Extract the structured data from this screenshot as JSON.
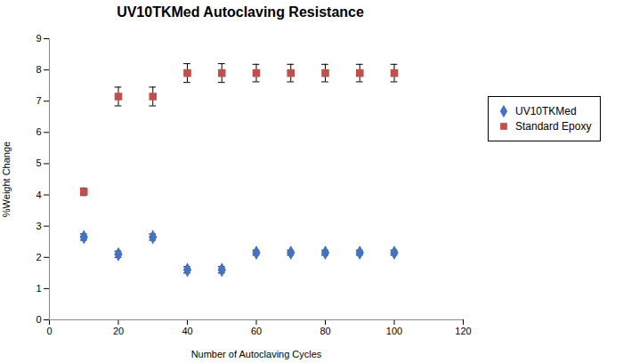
{
  "chart_data": {
    "type": "scatter",
    "title": "UV10TKMed Autoclaving Resistance",
    "xlabel": "Number of Autoclaving Cycles",
    "ylabel": "%Weight Change",
    "xlim": [
      0,
      120
    ],
    "ylim": [
      0,
      9
    ],
    "xticks": [
      0,
      20,
      40,
      60,
      80,
      100,
      120
    ],
    "yticks": [
      0,
      1,
      2,
      3,
      4,
      5,
      6,
      7,
      8,
      9
    ],
    "grid": false,
    "legend": "right",
    "series": [
      {
        "name": "UV10TKMed",
        "color": "#4472C4",
        "marker": "diamond",
        "x": [
          10,
          20,
          30,
          40,
          50,
          60,
          70,
          80,
          90,
          100
        ],
        "values": [
          2.65,
          2.1,
          2.65,
          1.6,
          1.6,
          2.15,
          2.15,
          2.15,
          2.15,
          2.15
        ],
        "yerr": [
          0.1,
          0.1,
          0.1,
          0.1,
          0.1,
          0.08,
          0.08,
          0.08,
          0.08,
          0.08
        ]
      },
      {
        "name": "Standard Epoxy",
        "color": "#C0504D",
        "marker": "square",
        "x": [
          10,
          20,
          30,
          40,
          50,
          60,
          70,
          80,
          90,
          100
        ],
        "values": [
          4.1,
          7.15,
          7.15,
          7.9,
          7.9,
          7.9,
          7.9,
          7.9,
          7.9,
          7.9
        ],
        "yerr": [
          0.12,
          0.3,
          0.3,
          0.3,
          0.3,
          0.28,
          0.28,
          0.28,
          0.28,
          0.28
        ]
      }
    ]
  }
}
